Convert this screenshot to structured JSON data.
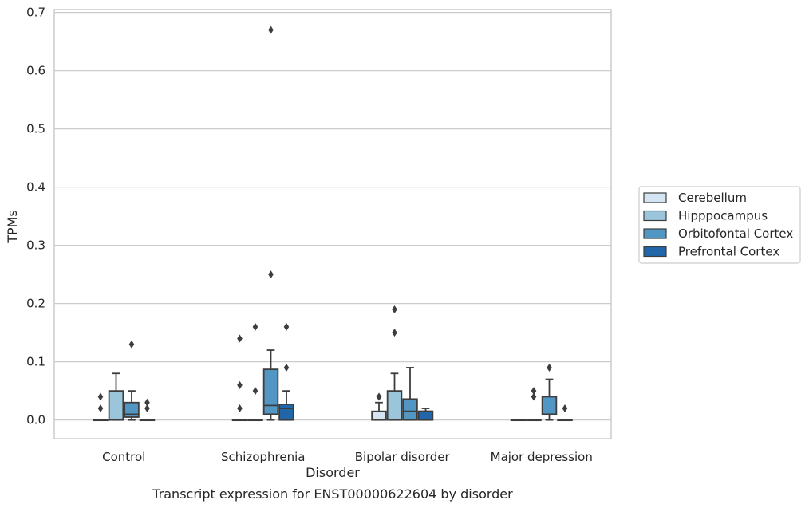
{
  "caption": "Transcript expression for ENST00000622604 by disorder",
  "chart_data": {
    "type": "box",
    "xlabel": "Disorder",
    "ylabel": "TPMs",
    "ylim": [
      -0.032,
      0.705
    ],
    "yticks": [
      0.0,
      0.1,
      0.2,
      0.3,
      0.4,
      0.5,
      0.6,
      0.7
    ],
    "ytick_labels": [
      "0.0",
      "0.1",
      "0.2",
      "0.3",
      "0.4",
      "0.5",
      "0.6",
      "0.7"
    ],
    "grid": "horizontal",
    "legend_position": "right",
    "categories": [
      "Control",
      "Schizophrenia",
      "Bipolar disorder",
      "Major depression"
    ],
    "series": [
      {
        "name": "Cerebellum",
        "color": "#d4e4f2",
        "boxes": [
          {
            "q1": 0,
            "median": 0,
            "q3": 0,
            "whislo": 0,
            "whishi": 0,
            "fliers": [
              0.02,
              0.04
            ]
          },
          {
            "q1": 0,
            "median": 0,
            "q3": 0,
            "whislo": 0,
            "whishi": 0,
            "fliers": [
              0.02,
              0.06,
              0.14
            ]
          },
          {
            "q1": 0,
            "median": 0,
            "q3": 0.015,
            "whislo": 0,
            "whishi": 0.03,
            "fliers": [
              0.04,
              0.04
            ]
          },
          {
            "q1": 0,
            "median": 0,
            "q3": 0,
            "whislo": 0,
            "whishi": 0,
            "fliers": []
          }
        ]
      },
      {
        "name": "Hipppocampus",
        "color": "#9ac5db",
        "boxes": [
          {
            "q1": 0,
            "median": 0,
            "q3": 0.05,
            "whislo": 0,
            "whishi": 0.08,
            "fliers": []
          },
          {
            "q1": 0,
            "median": 0,
            "q3": 0,
            "whislo": 0,
            "whishi": 0,
            "fliers": [
              0.05,
              0.16
            ]
          },
          {
            "q1": 0,
            "median": 0,
            "q3": 0.05,
            "whislo": 0,
            "whishi": 0.08,
            "fliers": [
              0.15,
              0.19
            ]
          },
          {
            "q1": 0,
            "median": 0,
            "q3": 0,
            "whislo": 0,
            "whishi": 0,
            "fliers": [
              0.04,
              0.05
            ]
          }
        ]
      },
      {
        "name": "Orbitofontal Cortex",
        "color": "#5296c4",
        "boxes": [
          {
            "q1": 0.005,
            "median": 0.01,
            "q3": 0.03,
            "whislo": 0,
            "whishi": 0.05,
            "fliers": [
              0.13
            ]
          },
          {
            "q1": 0.01,
            "median": 0.025,
            "q3": 0.087,
            "whislo": 0,
            "whishi": 0.12,
            "fliers": [
              0.25,
              0.67
            ]
          },
          {
            "q1": 0,
            "median": 0.015,
            "q3": 0.036,
            "whislo": 0,
            "whishi": 0.09,
            "fliers": []
          },
          {
            "q1": 0.01,
            "median": 0.01,
            "q3": 0.04,
            "whislo": 0,
            "whishi": 0.07,
            "fliers": [
              0.09
            ]
          }
        ]
      },
      {
        "name": "Prefrontal Cortex",
        "color": "#2166a8",
        "boxes": [
          {
            "q1": 0,
            "median": 0,
            "q3": 0,
            "whislo": 0,
            "whishi": 0,
            "fliers": [
              0.02,
              0.03
            ]
          },
          {
            "q1": 0,
            "median": 0.02,
            "q3": 0.027,
            "whislo": 0,
            "whishi": 0.05,
            "fliers": [
              0.09,
              0.16
            ]
          },
          {
            "q1": 0,
            "median": 0.015,
            "q3": 0.015,
            "whislo": 0,
            "whishi": 0.02,
            "fliers": []
          },
          {
            "q1": 0,
            "median": 0,
            "q3": 0,
            "whislo": 0,
            "whishi": 0,
            "fliers": [
              0.02
            ]
          }
        ]
      }
    ]
  }
}
